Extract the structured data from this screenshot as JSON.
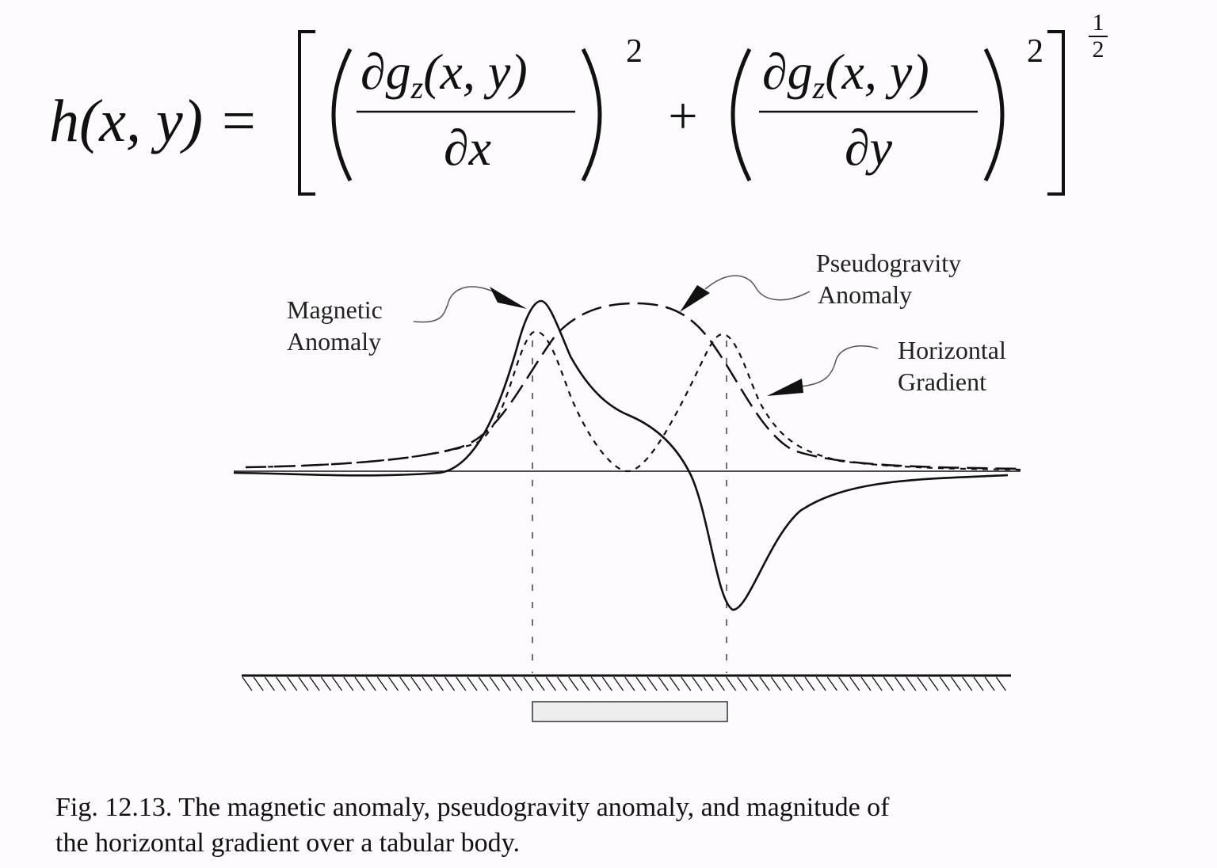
{
  "equation": {
    "lhs": "h(x, y) =",
    "numerator_1": "∂g",
    "numerator_1_sub": "z",
    "numerator_1_args": "(x, y)",
    "denominator_1": "∂x",
    "exponent_1": "2",
    "plus": "+",
    "numerator_2": "∂g",
    "numerator_2_sub": "z",
    "numerator_2_args": "(x, y)",
    "denominator_2": "∂y",
    "exponent_2": "2",
    "outer_exponent_num": "1",
    "outer_exponent_den": "2"
  },
  "figure": {
    "labels": {
      "magnetic": [
        "Magnetic",
        "Anomaly"
      ],
      "pseudogravity": [
        "Pseudogravity",
        "Anomaly"
      ],
      "gradient": [
        "Horizontal",
        "Gradient"
      ]
    },
    "line_styles": {
      "magnetic": "solid",
      "pseudogravity": "long-dash",
      "gradient": "short-dash"
    },
    "body_color": "#eeeeee"
  },
  "caption": {
    "line1": "Fig. 12.13. The magnetic anomaly, pseudogravity anomaly, and magnitude of",
    "line2": "the horizontal gradient over a tabular body."
  }
}
